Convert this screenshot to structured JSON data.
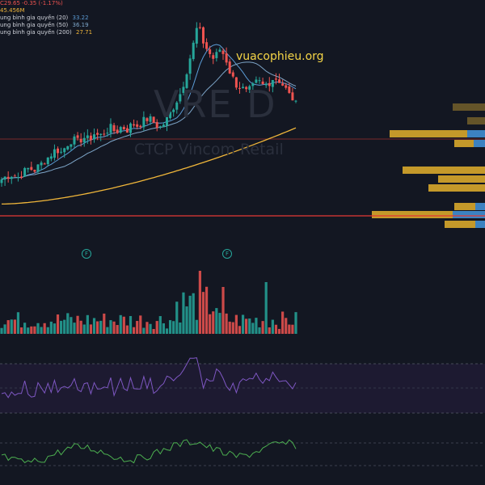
{
  "legend": {
    "price_change": "C29.65  -0.35 (-1.17%)",
    "volume": "45.456M",
    "ma20_label": "ung bình gia quyền (20)",
    "ma20_value": "33.22",
    "ma50_label": "ung bình gia quyền (50)",
    "ma50_value": "36.19",
    "ma200_label": "ung bình gia quyền (200)",
    "ma200_value": "27.71"
  },
  "watermark": {
    "ticker": "VRE D",
    "company": "CTCP Vincom Retail"
  },
  "site": "vuacophieu.org",
  "event_badges": [
    "F",
    "F"
  ],
  "colors": {
    "up": "#26a69a",
    "down": "#ef5350",
    "ma20": "#5b9bd5",
    "ma50": "#7ea6c9",
    "ma200": "#f0b63a",
    "rsi": "#7e57c2",
    "osc": "#4caf50",
    "hline": "#e53935",
    "vp_gold": "#d4a52b",
    "vp_blue": "#2e7fd1"
  },
  "chart_data": {
    "type": "candlestick",
    "ticker": "VRE",
    "last_close": 29.65,
    "change": -0.35,
    "change_pct": -1.17,
    "volume_last": "45.456M",
    "ma20": 33.22,
    "ma50": 36.19,
    "ma200": 27.71,
    "price_path": [
      18.5,
      19,
      19.2,
      18.8,
      19.5,
      20.1,
      19.8,
      20.5,
      21.2,
      22,
      22.8,
      22.3,
      23.5,
      24.2,
      23.8,
      24.5,
      24.1,
      25,
      24.6,
      25.3,
      25.8,
      25.2,
      26,
      25.5,
      26.4,
      26.1,
      26.8,
      27.2,
      26.5,
      25.8,
      26.6,
      28,
      29.5,
      31,
      34,
      37,
      40.5,
      38,
      36.5,
      35.5,
      37,
      36,
      33.5,
      32,
      31.5,
      30.8,
      31.5,
      32.5,
      31.8,
      32.2,
      33,
      32.5,
      31.5,
      30.2,
      29.65
    ]
  }
}
